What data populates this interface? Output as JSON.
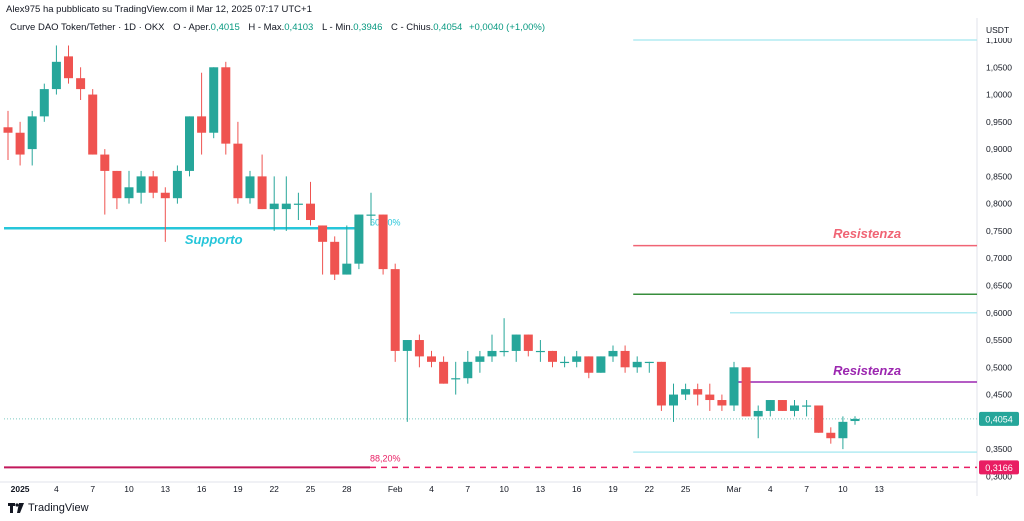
{
  "header": {
    "published": "Alex975 ha pubblicato su TradingView.com il Mar 12, 2025 07:17 UTC+1",
    "symbol": "Curve DAO Token/Tether · 1D · OKX",
    "open_label": "O - Aper.",
    "open_value": "0,4015",
    "high_label": "H - Max.",
    "high_value": "0,4103",
    "low_label": "L - Min.",
    "low_value": "0,3946",
    "close_label": "C - Chius.",
    "close_value": "0,4054",
    "change_value": "+0,0040 (+1,00%)"
  },
  "footer": {
    "brand": "TradingView"
  },
  "colors": {
    "up": "#26a69a",
    "down": "#ef5350",
    "support": "#26c6da",
    "resist_red": "#f06474",
    "resist_purple": "#9c27b0",
    "green_line": "#388e3c",
    "pink": "#e91e63",
    "light": "#b2ebf2"
  },
  "chart_data": {
    "type": "candlestick",
    "currency": "USDT",
    "ylim": [
      0.3,
      1.1
    ],
    "y_ticks": [
      "1,0500",
      "1,0000",
      "0,9500",
      "0,9000",
      "0,8500",
      "0,8000",
      "0,7500",
      "0,7000",
      "0,6500",
      "0,6000",
      "0,5500",
      "0,5000",
      "0,4500",
      "0,3500",
      "0,3000"
    ],
    "y_tick_values": [
      1.05,
      1.0,
      0.95,
      0.9,
      0.85,
      0.8,
      0.75,
      0.7,
      0.65,
      0.6,
      0.55,
      0.5,
      0.45,
      0.35,
      0.3
    ],
    "y_top_partial": "1,1000",
    "x_labels": [
      {
        "text": "2025",
        "idx": 1,
        "bold": true
      },
      {
        "text": "4",
        "idx": 4
      },
      {
        "text": "7",
        "idx": 7
      },
      {
        "text": "10",
        "idx": 10
      },
      {
        "text": "13",
        "idx": 13
      },
      {
        "text": "16",
        "idx": 16
      },
      {
        "text": "19",
        "idx": 19
      },
      {
        "text": "22",
        "idx": 22
      },
      {
        "text": "25",
        "idx": 25
      },
      {
        "text": "28",
        "idx": 28
      },
      {
        "text": "Feb",
        "idx": 32
      },
      {
        "text": "4",
        "idx": 35
      },
      {
        "text": "7",
        "idx": 38
      },
      {
        "text": "10",
        "idx": 41
      },
      {
        "text": "13",
        "idx": 44
      },
      {
        "text": "16",
        "idx": 47
      },
      {
        "text": "19",
        "idx": 50
      },
      {
        "text": "22",
        "idx": 53
      },
      {
        "text": "25",
        "idx": 56
      },
      {
        "text": "Mar",
        "idx": 60
      },
      {
        "text": "4",
        "idx": 63
      },
      {
        "text": "7",
        "idx": 66
      },
      {
        "text": "10",
        "idx": 69
      },
      {
        "text": "13",
        "idx": 72
      }
    ],
    "candles": [
      {
        "o": 0.94,
        "h": 0.97,
        "l": 0.88,
        "c": 0.93
      },
      {
        "o": 0.93,
        "h": 0.95,
        "l": 0.87,
        "c": 0.89
      },
      {
        "o": 0.9,
        "h": 0.97,
        "l": 0.87,
        "c": 0.96
      },
      {
        "o": 0.96,
        "h": 1.02,
        "l": 0.95,
        "c": 1.01
      },
      {
        "o": 1.01,
        "h": 1.09,
        "l": 1.0,
        "c": 1.06
      },
      {
        "o": 1.07,
        "h": 1.09,
        "l": 1.02,
        "c": 1.03
      },
      {
        "o": 1.03,
        "h": 1.05,
        "l": 0.99,
        "c": 1.01
      },
      {
        "o": 1.0,
        "h": 1.01,
        "l": 0.89,
        "c": 0.89
      },
      {
        "o": 0.89,
        "h": 0.9,
        "l": 0.78,
        "c": 0.86
      },
      {
        "o": 0.86,
        "h": 0.86,
        "l": 0.79,
        "c": 0.81
      },
      {
        "o": 0.81,
        "h": 0.86,
        "l": 0.8,
        "c": 0.83
      },
      {
        "o": 0.82,
        "h": 0.86,
        "l": 0.8,
        "c": 0.85
      },
      {
        "o": 0.85,
        "h": 0.86,
        "l": 0.81,
        "c": 0.82
      },
      {
        "o": 0.82,
        "h": 0.83,
        "l": 0.73,
        "c": 0.81
      },
      {
        "o": 0.81,
        "h": 0.87,
        "l": 0.8,
        "c": 0.86
      },
      {
        "o": 0.86,
        "h": 0.96,
        "l": 0.85,
        "c": 0.96
      },
      {
        "o": 0.96,
        "h": 1.04,
        "l": 0.89,
        "c": 0.93
      },
      {
        "o": 0.93,
        "h": 1.05,
        "l": 0.92,
        "c": 1.05
      },
      {
        "o": 1.05,
        "h": 1.06,
        "l": 0.89,
        "c": 0.91
      },
      {
        "o": 0.91,
        "h": 0.95,
        "l": 0.8,
        "c": 0.81
      },
      {
        "o": 0.81,
        "h": 0.86,
        "l": 0.8,
        "c": 0.85
      },
      {
        "o": 0.85,
        "h": 0.89,
        "l": 0.79,
        "c": 0.79
      },
      {
        "o": 0.79,
        "h": 0.85,
        "l": 0.75,
        "c": 0.8
      },
      {
        "o": 0.79,
        "h": 0.85,
        "l": 0.75,
        "c": 0.8
      },
      {
        "o": 0.8,
        "h": 0.82,
        "l": 0.77,
        "c": 0.8
      },
      {
        "o": 0.8,
        "h": 0.84,
        "l": 0.76,
        "c": 0.77
      },
      {
        "o": 0.76,
        "h": 0.76,
        "l": 0.67,
        "c": 0.73
      },
      {
        "o": 0.73,
        "h": 0.74,
        "l": 0.66,
        "c": 0.67
      },
      {
        "o": 0.67,
        "h": 0.76,
        "l": 0.67,
        "c": 0.69
      },
      {
        "o": 0.69,
        "h": 0.78,
        "l": 0.68,
        "c": 0.78
      },
      {
        "o": 0.78,
        "h": 0.82,
        "l": 0.76,
        "c": 0.78
      },
      {
        "o": 0.78,
        "h": 0.78,
        "l": 0.67,
        "c": 0.68
      },
      {
        "o": 0.68,
        "h": 0.69,
        "l": 0.51,
        "c": 0.53
      },
      {
        "o": 0.53,
        "h": 0.55,
        "l": 0.4,
        "c": 0.55
      },
      {
        "o": 0.55,
        "h": 0.56,
        "l": 0.5,
        "c": 0.52
      },
      {
        "o": 0.52,
        "h": 0.53,
        "l": 0.5,
        "c": 0.51
      },
      {
        "o": 0.51,
        "h": 0.52,
        "l": 0.47,
        "c": 0.47
      },
      {
        "o": 0.48,
        "h": 0.51,
        "l": 0.45,
        "c": 0.48
      },
      {
        "o": 0.48,
        "h": 0.53,
        "l": 0.47,
        "c": 0.51
      },
      {
        "o": 0.51,
        "h": 0.53,
        "l": 0.49,
        "c": 0.52
      },
      {
        "o": 0.52,
        "h": 0.56,
        "l": 0.51,
        "c": 0.53
      },
      {
        "o": 0.53,
        "h": 0.59,
        "l": 0.52,
        "c": 0.53
      },
      {
        "o": 0.53,
        "h": 0.56,
        "l": 0.51,
        "c": 0.56
      },
      {
        "o": 0.56,
        "h": 0.56,
        "l": 0.52,
        "c": 0.53
      },
      {
        "o": 0.53,
        "h": 0.55,
        "l": 0.51,
        "c": 0.53
      },
      {
        "o": 0.53,
        "h": 0.53,
        "l": 0.5,
        "c": 0.51
      },
      {
        "o": 0.51,
        "h": 0.52,
        "l": 0.5,
        "c": 0.51
      },
      {
        "o": 0.51,
        "h": 0.53,
        "l": 0.5,
        "c": 0.52
      },
      {
        "o": 0.52,
        "h": 0.52,
        "l": 0.48,
        "c": 0.49
      },
      {
        "o": 0.49,
        "h": 0.52,
        "l": 0.49,
        "c": 0.52
      },
      {
        "o": 0.52,
        "h": 0.54,
        "l": 0.51,
        "c": 0.53
      },
      {
        "o": 0.53,
        "h": 0.54,
        "l": 0.49,
        "c": 0.5
      },
      {
        "o": 0.5,
        "h": 0.52,
        "l": 0.49,
        "c": 0.51
      },
      {
        "o": 0.51,
        "h": 0.51,
        "l": 0.49,
        "c": 0.51
      },
      {
        "o": 0.51,
        "h": 0.51,
        "l": 0.42,
        "c": 0.43
      },
      {
        "o": 0.43,
        "h": 0.47,
        "l": 0.4,
        "c": 0.45
      },
      {
        "o": 0.45,
        "h": 0.47,
        "l": 0.44,
        "c": 0.46
      },
      {
        "o": 0.46,
        "h": 0.47,
        "l": 0.43,
        "c": 0.45
      },
      {
        "o": 0.45,
        "h": 0.47,
        "l": 0.42,
        "c": 0.44
      },
      {
        "o": 0.44,
        "h": 0.45,
        "l": 0.42,
        "c": 0.43
      },
      {
        "o": 0.43,
        "h": 0.51,
        "l": 0.42,
        "c": 0.5
      },
      {
        "o": 0.5,
        "h": 0.5,
        "l": 0.41,
        "c": 0.41
      },
      {
        "o": 0.41,
        "h": 0.43,
        "l": 0.37,
        "c": 0.42
      },
      {
        "o": 0.42,
        "h": 0.44,
        "l": 0.41,
        "c": 0.44
      },
      {
        "o": 0.44,
        "h": 0.44,
        "l": 0.42,
        "c": 0.42
      },
      {
        "o": 0.42,
        "h": 0.44,
        "l": 0.41,
        "c": 0.43
      },
      {
        "o": 0.43,
        "h": 0.44,
        "l": 0.41,
        "c": 0.43
      },
      {
        "o": 0.43,
        "h": 0.43,
        "l": 0.38,
        "c": 0.38
      },
      {
        "o": 0.38,
        "h": 0.39,
        "l": 0.36,
        "c": 0.37
      },
      {
        "o": 0.37,
        "h": 0.41,
        "l": 0.35,
        "c": 0.4
      },
      {
        "o": 0.4015,
        "h": 0.4103,
        "l": 0.3946,
        "c": 0.4054
      }
    ],
    "lines": [
      {
        "name": "support-line",
        "price": 0.755,
        "from_idx": 0,
        "to_idx": 29,
        "color": "#26c6da",
        "width": 2.5,
        "label": "Supporto",
        "label_idx": 17,
        "label_price": 0.726
      },
      {
        "name": "fib-60-line",
        "price": 0.755,
        "from_idx": 29,
        "to_idx": 29.2,
        "color": "#26c6da",
        "width": 1,
        "label": "60,00%",
        "label_idx": 29,
        "label_price": 0.76,
        "label_size": 9,
        "label_plain": true
      },
      {
        "name": "resist-red-line",
        "price": 0.723,
        "from_idx": 52,
        "to_idx": 76,
        "color": "#f06474",
        "width": 1.5,
        "label": "Resistenza",
        "label_idx": 71,
        "label_price": 0.737
      },
      {
        "name": "green-line",
        "price": 0.634,
        "from_idx": 52,
        "to_idx": 76,
        "color": "#388e3c",
        "width": 1.5
      },
      {
        "name": "light-line-top",
        "price": 1.1,
        "from_idx": 52,
        "to_idx": 76,
        "color": "#b2ebf2",
        "width": 1.5
      },
      {
        "name": "light-line-mid",
        "price": 0.6,
        "from_idx": 60,
        "to_idx": 76,
        "color": "#b2ebf2",
        "width": 1.5
      },
      {
        "name": "resist-purple-line",
        "price": 0.473,
        "from_idx": 60,
        "to_idx": 76,
        "color": "#9c27b0",
        "width": 1.5,
        "label": "Resistenza",
        "label_idx": 71,
        "label_price": 0.486
      },
      {
        "name": "light-line-low",
        "price": 0.3445,
        "from_idx": 52,
        "to_idx": 76,
        "color": "#b2ebf2",
        "width": 1.5
      }
    ],
    "fib_88_label": "88,20%",
    "current_price_label": "0,4054",
    "current_price": 0.4054,
    "dashed_price_label": "0,3166",
    "dashed_price": 0.3166
  }
}
